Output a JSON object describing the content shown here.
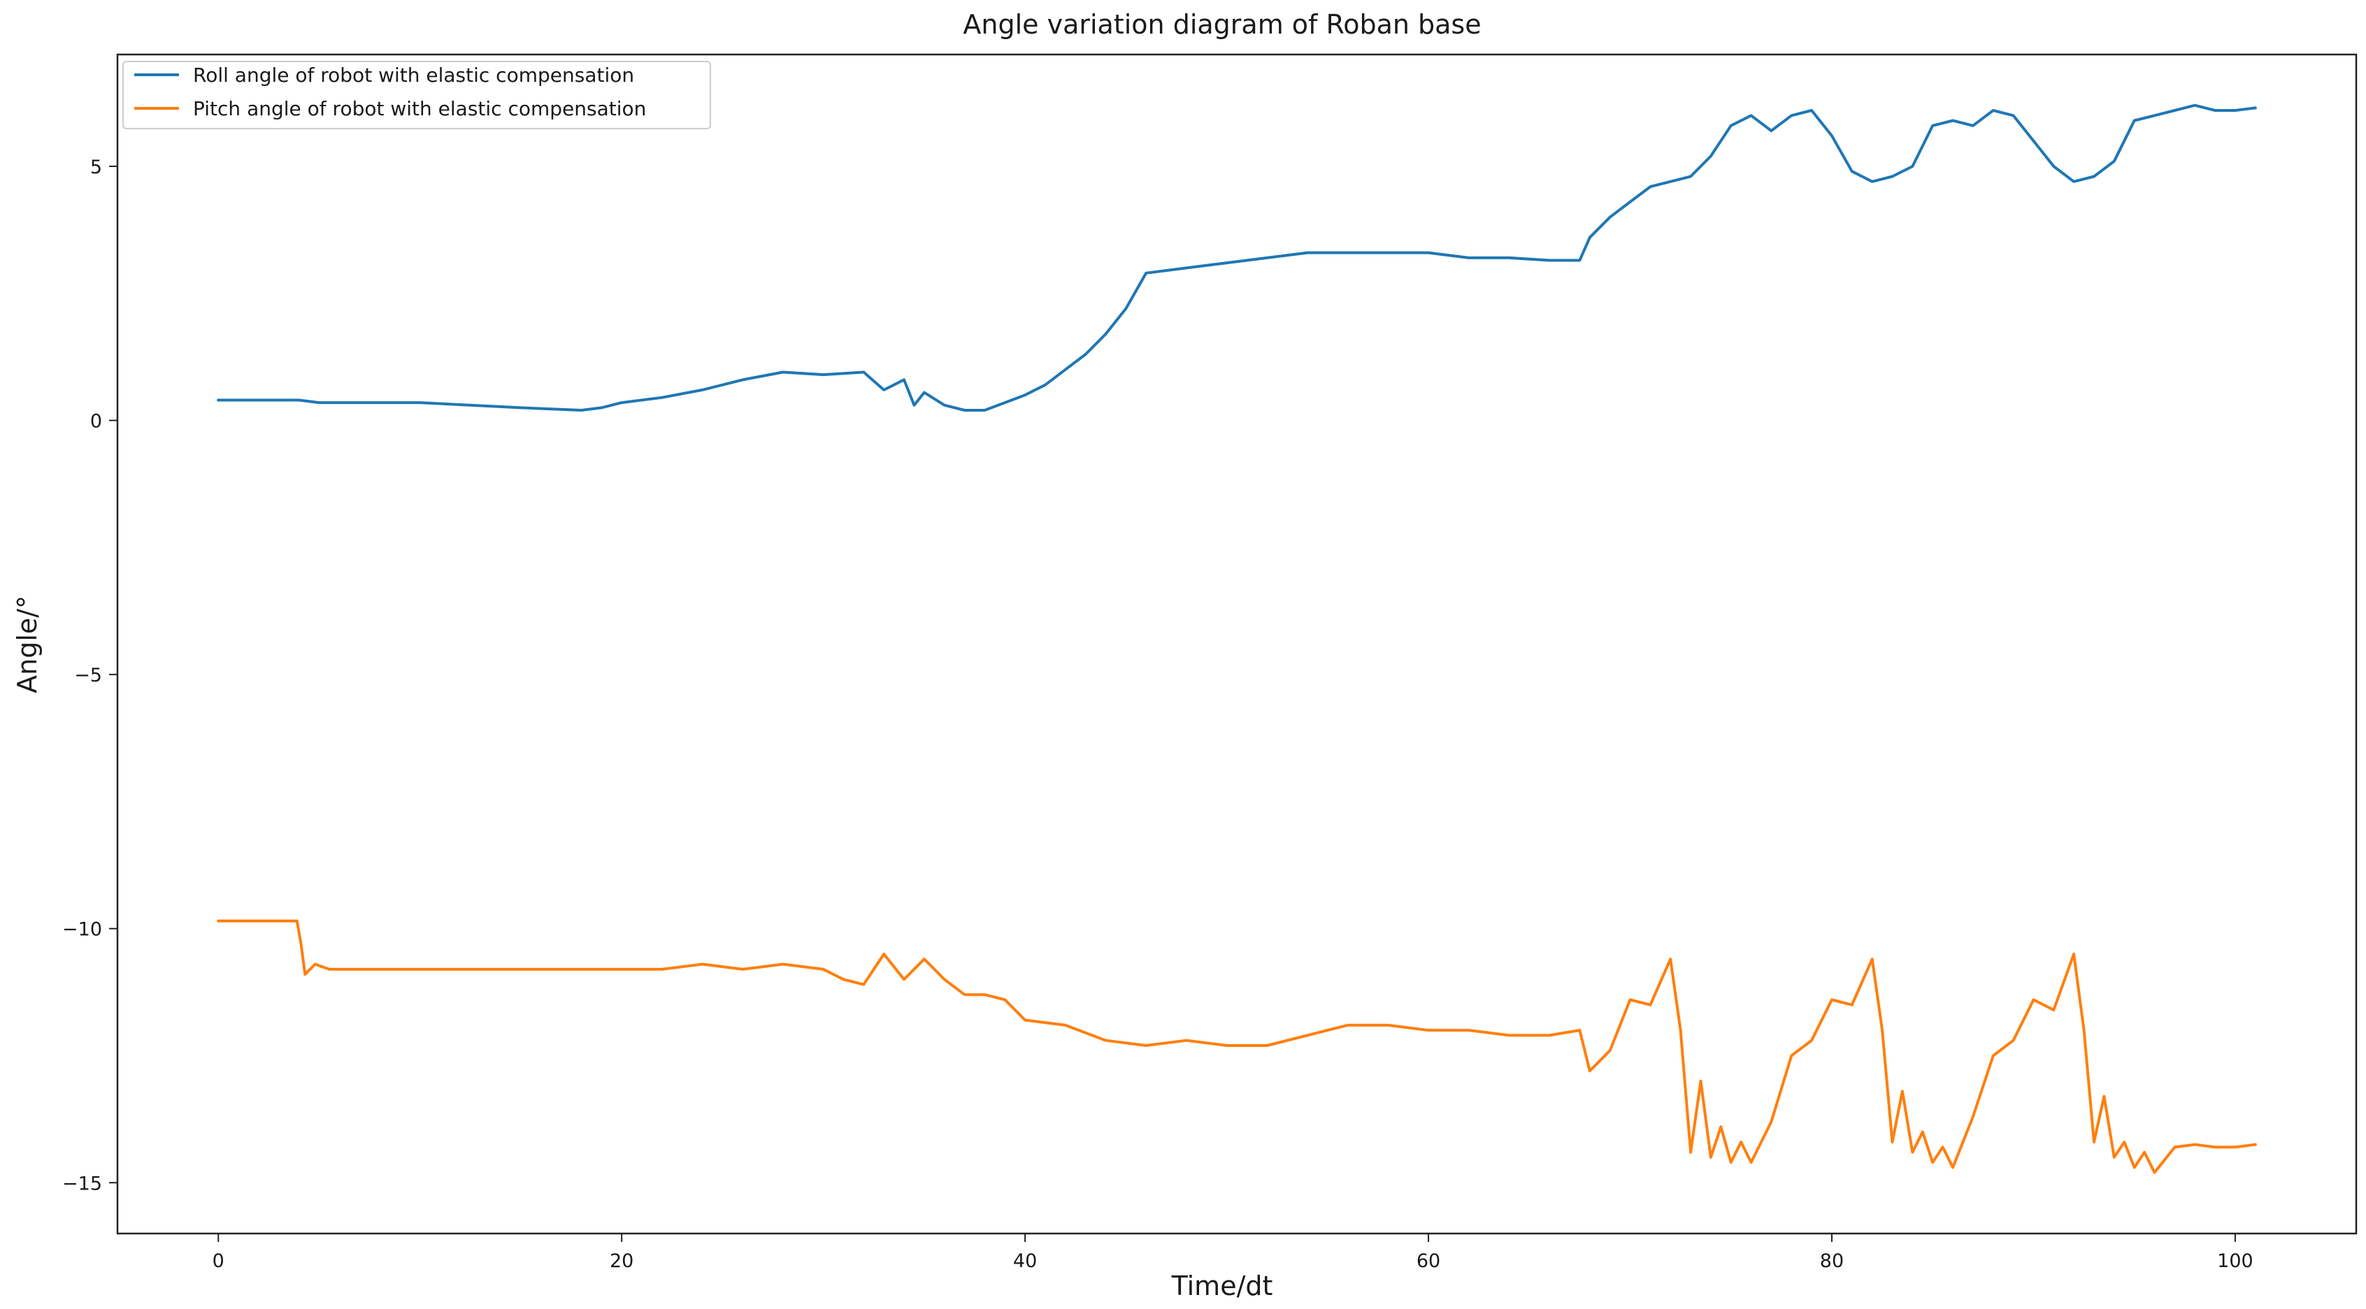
{
  "chart_data": {
    "type": "line",
    "title": "Angle variation diagram of Roban base",
    "xlabel": "Time/dt",
    "ylabel": "Angle/°",
    "xlim": [
      -5,
      106
    ],
    "ylim": [
      -16,
      7.2
    ],
    "xticks": [
      0,
      20,
      40,
      60,
      80,
      100
    ],
    "yticks": [
      5,
      0,
      -5,
      -10,
      -15
    ],
    "ytick_labels": [
      "5",
      "0",
      "−5",
      "−10",
      "−15"
    ],
    "grid": false,
    "legend_position": "top-left",
    "series": [
      {
        "name": "Roll angle of robot with elastic compensation",
        "color": "#1f77b4",
        "x": [
          0,
          4,
          5,
          10,
          15,
          18,
          19,
          20,
          22,
          24,
          26,
          28,
          30,
          32,
          33,
          34,
          34.5,
          35,
          36,
          37,
          38,
          40,
          41,
          42,
          43,
          44,
          45,
          46,
          48,
          50,
          52,
          54,
          56,
          58,
          60,
          62,
          64,
          66,
          67.5,
          68,
          69,
          70,
          71,
          72,
          73,
          74,
          75,
          76,
          77,
          78,
          79,
          80,
          81,
          82,
          83,
          84,
          85,
          86,
          87,
          88,
          89,
          90,
          91,
          92,
          93,
          94,
          95,
          96,
          97,
          98,
          99,
          100,
          101
        ],
        "values": [
          0.4,
          0.4,
          0.35,
          0.35,
          0.25,
          0.2,
          0.25,
          0.35,
          0.45,
          0.6,
          0.8,
          0.95,
          0.9,
          0.95,
          0.6,
          0.8,
          0.3,
          0.55,
          0.3,
          0.2,
          0.2,
          0.5,
          0.7,
          1.0,
          1.3,
          1.7,
          2.2,
          2.9,
          3.0,
          3.1,
          3.2,
          3.3,
          3.3,
          3.3,
          3.3,
          3.2,
          3.2,
          3.15,
          3.15,
          3.6,
          4.0,
          4.3,
          4.6,
          4.7,
          4.8,
          5.2,
          5.8,
          6.0,
          5.7,
          6.0,
          6.1,
          5.6,
          4.9,
          4.7,
          4.8,
          5.0,
          5.8,
          5.9,
          5.8,
          6.1,
          6.0,
          5.5,
          5.0,
          4.7,
          4.8,
          5.1,
          5.9,
          6.0,
          6.1,
          6.2,
          6.1,
          6.1,
          6.15
        ]
      },
      {
        "name": "Pitch angle of robot with elastic compensation",
        "color": "#ff7f0e",
        "x": [
          0,
          3.9,
          4.1,
          4.3,
          4.8,
          5.5,
          10,
          15,
          20,
          22,
          24,
          26,
          28,
          30,
          31,
          32,
          33,
          34,
          35,
          36,
          37,
          38,
          39,
          40,
          42,
          44,
          46,
          48,
          50,
          52,
          54,
          56,
          58,
          60,
          62,
          64,
          66,
          67.5,
          68,
          69,
          70,
          71,
          72,
          72.5,
          73,
          73.5,
          74,
          74.5,
          75,
          75.5,
          76,
          77,
          78,
          79,
          80,
          81,
          82,
          82.5,
          83,
          83.5,
          84,
          84.5,
          85,
          85.5,
          86,
          87,
          88,
          89,
          90,
          91,
          92,
          92.5,
          93,
          93.5,
          94,
          94.5,
          95,
          95.5,
          96,
          97,
          98,
          99,
          100,
          101
        ],
        "values": [
          -9.85,
          -9.85,
          -10.3,
          -10.9,
          -10.7,
          -10.8,
          -10.8,
          -10.8,
          -10.8,
          -10.8,
          -10.7,
          -10.8,
          -10.7,
          -10.8,
          -11.0,
          -11.1,
          -10.5,
          -11.0,
          -10.6,
          -11.0,
          -11.3,
          -11.3,
          -11.4,
          -11.8,
          -11.9,
          -12.2,
          -12.3,
          -12.2,
          -12.3,
          -12.3,
          -12.1,
          -11.9,
          -11.9,
          -12.0,
          -12.0,
          -12.1,
          -12.1,
          -12.0,
          -12.8,
          -12.4,
          -11.4,
          -11.5,
          -10.6,
          -12.0,
          -14.4,
          -13.0,
          -14.5,
          -13.9,
          -14.6,
          -14.2,
          -14.6,
          -13.8,
          -12.5,
          -12.2,
          -11.4,
          -11.5,
          -10.6,
          -12.0,
          -14.2,
          -13.2,
          -14.4,
          -14.0,
          -14.6,
          -14.3,
          -14.7,
          -13.7,
          -12.5,
          -12.2,
          -11.4,
          -11.6,
          -10.5,
          -12.0,
          -14.2,
          -13.3,
          -14.5,
          -14.2,
          -14.7,
          -14.4,
          -14.8,
          -14.3,
          -14.25,
          -14.3,
          -14.3,
          -14.25
        ]
      }
    ]
  }
}
